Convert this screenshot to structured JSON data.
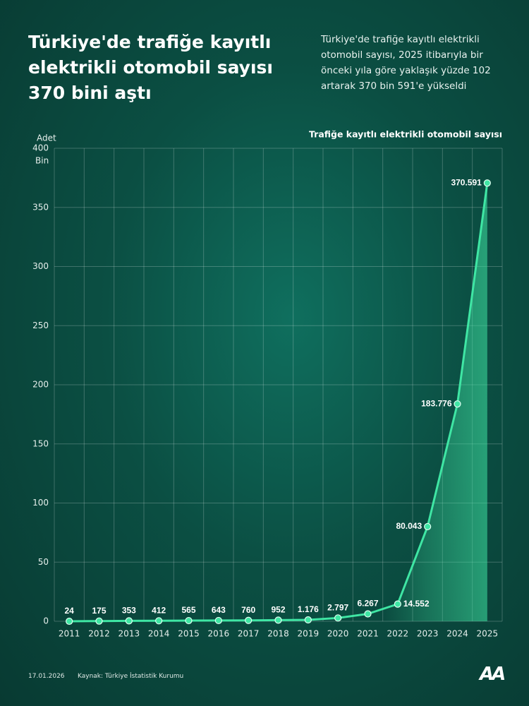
{
  "chart_data": {
    "type": "line",
    "title": "Türkiye'de trafiğe kayıtlı elektrikli otomobil sayısı 370 bini aştı",
    "subtitle": "Türkiye'de trafiğe kayıtlı elektrikli otomobil sayısı, 2025 itibarıyla bir önceki yıla göre yaklaşık yüzde 102 artarak 370 bin 591'e yükseldi",
    "y_label": "Adet",
    "y_unit": "Bin",
    "categories": [
      "2011",
      "2012",
      "2013",
      "2014",
      "2015",
      "2016",
      "2017",
      "2018",
      "2019",
      "2020",
      "2021",
      "2022",
      "2023",
      "2024",
      "2025"
    ],
    "series": [
      {
        "name": "Trafiğe kayıtlı elektrikli otomobil sayısı",
        "color": "#3fe6a4",
        "values": [
          0.024,
          0.175,
          0.353,
          0.412,
          0.565,
          0.643,
          0.76,
          0.952,
          1.176,
          2.797,
          6.267,
          14.552,
          80.043,
          183.776,
          370.591
        ],
        "value_labels": [
          "24",
          "175",
          "353",
          "412",
          "565",
          "643",
          "760",
          "952",
          "1.176",
          "2.797",
          "6.267",
          "14.552",
          "80.043",
          "183.776",
          "370.591"
        ]
      }
    ],
    "ylim": [
      0,
      400
    ],
    "yticks": [
      0,
      50,
      100,
      150,
      200,
      250,
      300,
      350,
      400
    ],
    "grid": true,
    "date": "17.01.2026",
    "source": "Kaynak: Türkiye İstatistik Kurumu",
    "logo": "AA"
  }
}
